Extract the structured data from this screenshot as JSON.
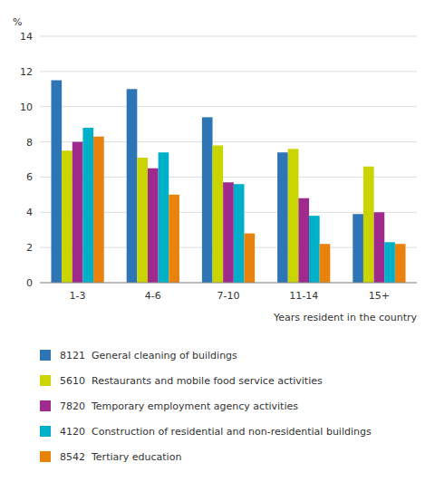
{
  "chart_data": {
    "type": "bar",
    "categories": [
      "1-3",
      "4-6",
      "7-10",
      "11-14",
      "15+"
    ],
    "series": [
      {
        "name": "8121  General cleaning of buildings",
        "color": "#2E75B6",
        "values": [
          11.5,
          11.0,
          9.4,
          7.4,
          3.9
        ]
      },
      {
        "name": "5610  Restaurants and mobile food service activities",
        "color": "#C9D400",
        "values": [
          7.5,
          7.1,
          7.8,
          7.6,
          6.6
        ]
      },
      {
        "name": "7820  Temporary employment agency activities",
        "color": "#9E2A8E",
        "values": [
          8.0,
          6.5,
          5.7,
          4.8,
          4.0
        ]
      },
      {
        "name": "4120  Construction of residential and non-residential buildings",
        "color": "#00B0C8",
        "values": [
          8.8,
          7.4,
          5.6,
          3.8,
          2.3
        ]
      },
      {
        "name": "8542  Tertiary education",
        "color": "#E8820C",
        "values": [
          8.3,
          5.0,
          2.8,
          2.2,
          2.2
        ]
      }
    ],
    "ylabel": "%",
    "xlabel": "Years resident in the country",
    "ylim": [
      0,
      14
    ],
    "yticks": [
      0,
      2,
      4,
      6,
      8,
      10,
      12,
      14
    ],
    "grid": true,
    "legend": "bottom"
  }
}
